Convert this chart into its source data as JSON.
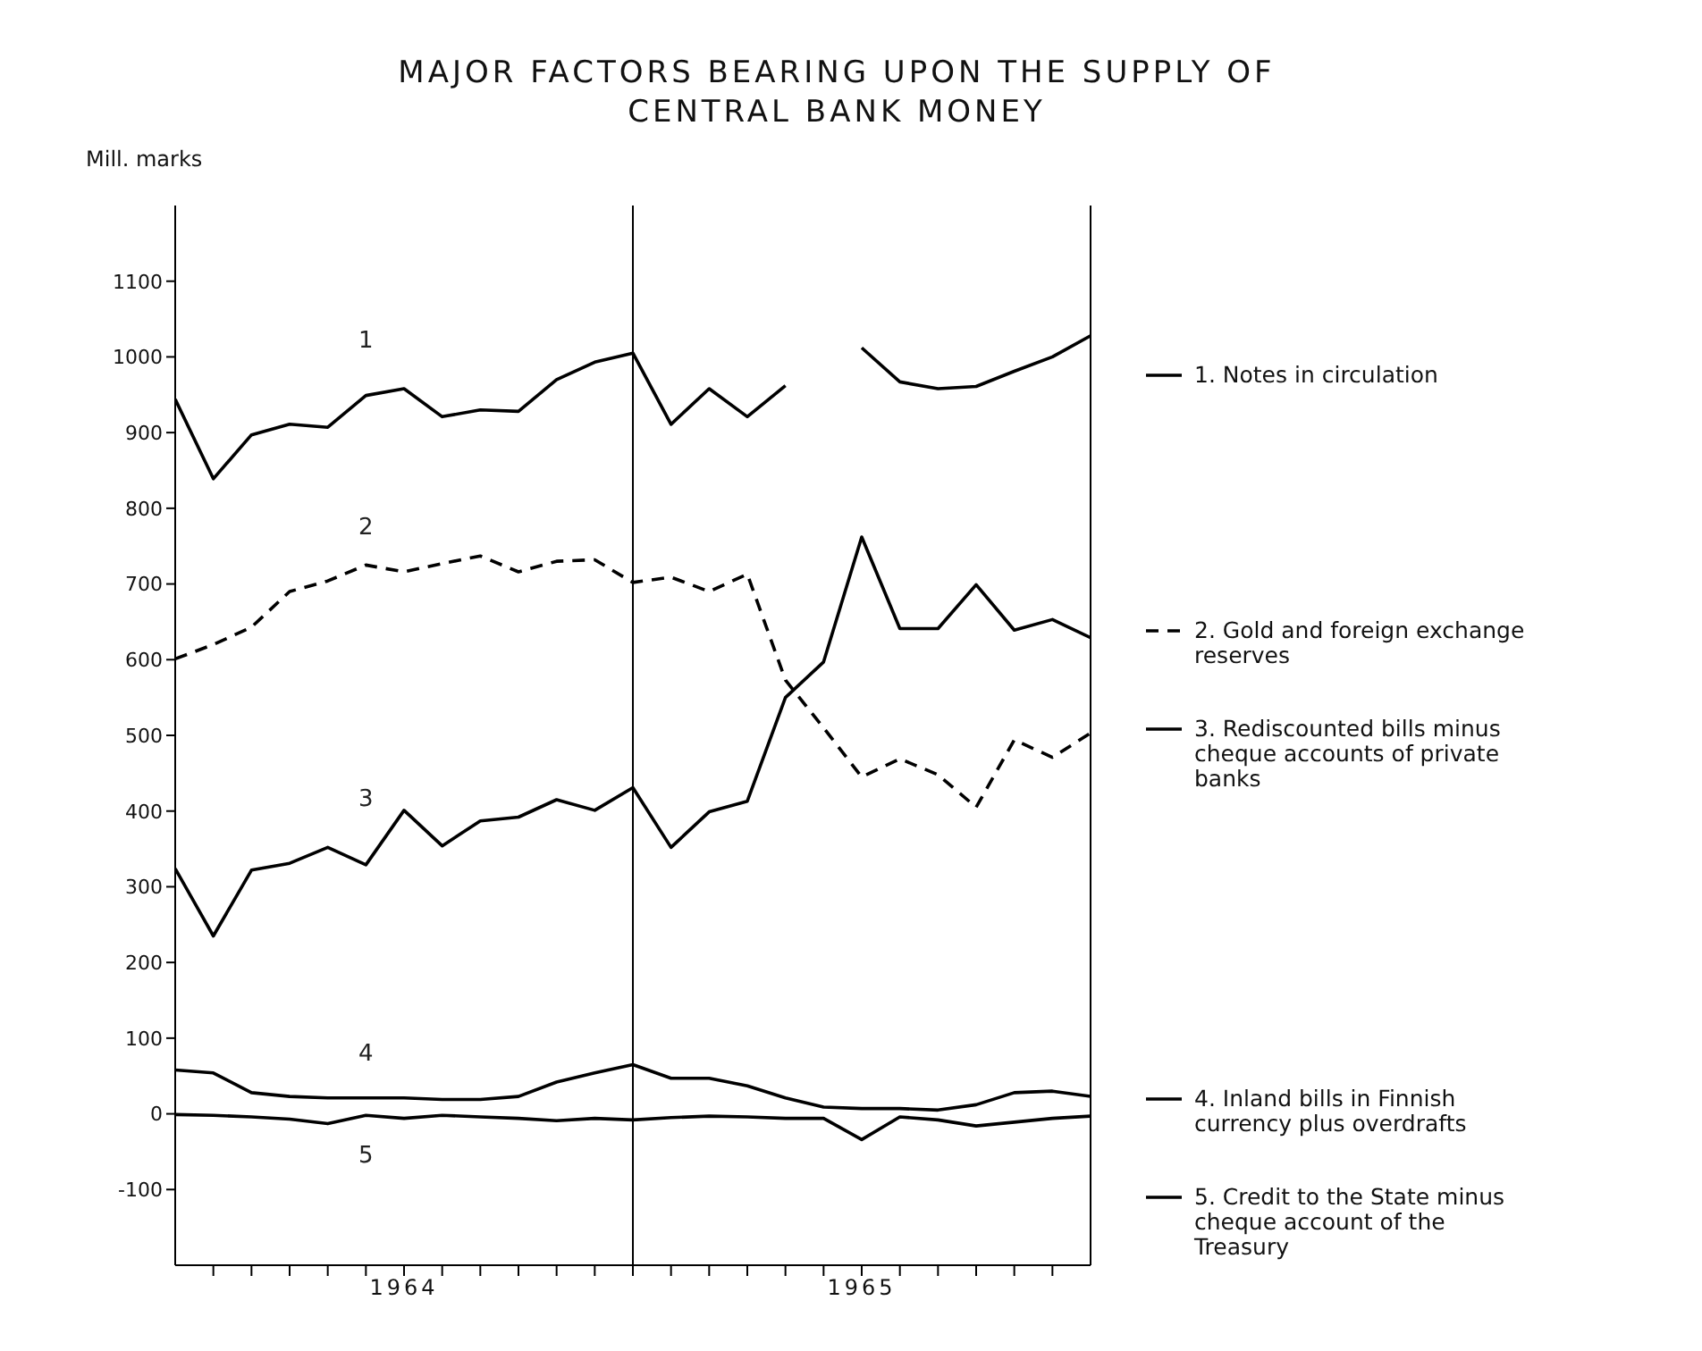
{
  "chart_data": {
    "type": "line",
    "title": "MAJOR FACTORS BEARING UPON THE SUPPLY OF CENTRAL BANK MONEY",
    "ylabel": "Mill. marks",
    "categories": [
      null,
      null,
      null,
      null,
      null,
      null,
      "1964",
      null,
      null,
      null,
      null,
      null,
      null,
      null,
      null,
      null,
      null,
      null,
      "1965",
      null,
      null,
      null,
      null,
      null,
      null
    ],
    "ylim": [
      -200,
      1200
    ],
    "yticks": [
      -100,
      0,
      100,
      200,
      300,
      400,
      500,
      600,
      700,
      800,
      900,
      1000,
      1100
    ],
    "legend": "right",
    "marker": "none",
    "series": [
      {
        "name": "1. Notes in circulation",
        "color": "#000000",
        "line_style": "solid",
        "values": [
          944,
          839,
          897,
          911,
          907,
          949,
          958,
          921,
          930,
          928,
          970,
          993,
          1005,
          911,
          958,
          921,
          962,
          null,
          1012,
          967,
          958,
          961,
          981,
          1000,
          1028
        ]
      },
      {
        "name": "2. Gold and foreign exchange reserves",
        "color": "#000000",
        "line_style": "dashed",
        "values": [
          601,
          620,
          643,
          690,
          704,
          725,
          716,
          727,
          737,
          716,
          730,
          732,
          702,
          709,
          690,
          713,
          573,
          510,
          445,
          469,
          448,
          405,
          494,
          471,
          503
        ]
      },
      {
        "name": "3. Rediscounted bills minus cheque accounts of private banks",
        "color": "#000000",
        "line_style": "solid",
        "values": [
          324,
          235,
          322,
          331,
          352,
          329,
          401,
          354,
          387,
          392,
          415,
          401,
          431,
          352,
          399,
          413,
          550,
          597,
          762,
          641,
          641,
          699,
          639,
          653,
          629
        ]
      },
      {
        "name": "4. Inland bills in Finnish currency plus overdrafts",
        "color": "#000000",
        "line_style": "solid",
        "values": [
          58,
          54,
          28,
          23,
          21,
          21,
          21,
          19,
          19,
          23,
          42,
          54,
          65,
          47,
          47,
          37,
          21,
          9,
          7,
          7,
          5,
          12,
          28,
          30,
          23
        ]
      },
      {
        "name": "5. Credit to the State minus cheque account of the Treasury",
        "color": "#000000",
        "line_style": "solid",
        "values": [
          -1,
          -2,
          -4,
          -7,
          -13,
          -2,
          -6,
          -2,
          -4,
          -6,
          -9,
          -6,
          -8,
          -5,
          -3,
          -4,
          -6,
          -6,
          -34,
          -4,
          -8,
          -16,
          -11,
          -6,
          -3
        ]
      }
    ],
    "annotations": [
      "1",
      "2",
      "3",
      "4",
      "5"
    ]
  }
}
